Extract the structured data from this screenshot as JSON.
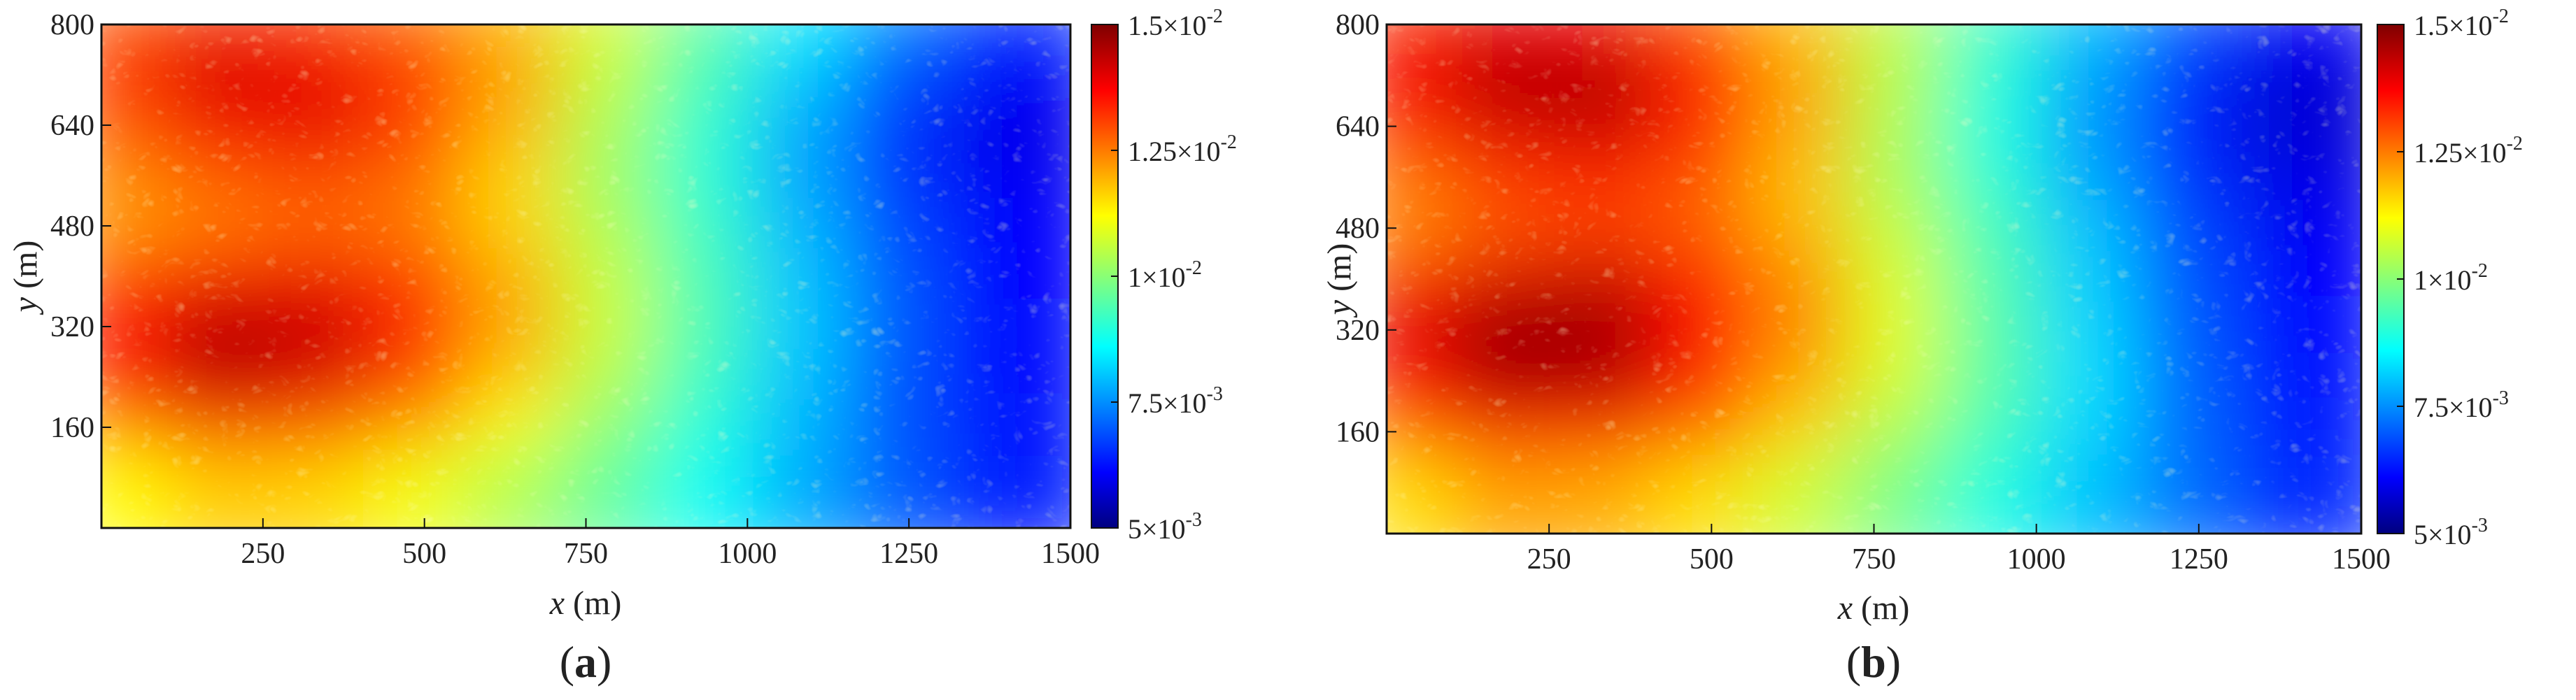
{
  "panels": [
    {
      "label_open": "(",
      "label_letter": "a",
      "label_close": ")",
      "xlabel_var": "x",
      "xlabel_unit": " (m)",
      "ylabel_var": "y",
      "ylabel_unit": " (m)",
      "colorbar_ticks": [
        {
          "mantissa": "1.5",
          "times": "×10",
          "exp": "-2"
        },
        {
          "mantissa": "1.25",
          "times": "×10",
          "exp": "-2"
        },
        {
          "mantissa": "1",
          "times": "×10",
          "exp": "-2"
        },
        {
          "mantissa": "7.5",
          "times": "×10",
          "exp": "-3"
        },
        {
          "mantissa": "5",
          "times": "×10",
          "exp": "-3"
        }
      ]
    },
    {
      "label_open": "(",
      "label_letter": "b",
      "label_close": ")",
      "xlabel_var": "x",
      "xlabel_unit": " (m)",
      "ylabel_var": "y",
      "ylabel_unit": " (m)",
      "colorbar_ticks": [
        {
          "mantissa": "1.5",
          "times": "×10",
          "exp": "-2"
        },
        {
          "mantissa": "1.25",
          "times": "×10",
          "exp": "-2"
        },
        {
          "mantissa": "1",
          "times": "×10",
          "exp": "-2"
        },
        {
          "mantissa": "7.5",
          "times": "×10",
          "exp": "-3"
        },
        {
          "mantissa": "5",
          "times": "×10",
          "exp": "-3"
        }
      ]
    }
  ],
  "chart_data": [
    {
      "type": "heatmap",
      "title": "",
      "xlabel": "x (m)",
      "ylabel": "y (m)",
      "xlim": [
        0,
        1500
      ],
      "ylim": [
        0,
        800
      ],
      "xticks": [
        250,
        500,
        750,
        1000,
        1250,
        1500
      ],
      "yticks": [
        160,
        320,
        480,
        640,
        800
      ],
      "colorbar": {
        "colormap": "jet",
        "range": [
          0.005,
          0.015
        ],
        "ticks": [
          0.005,
          0.0075,
          0.01,
          0.0125,
          0.015
        ]
      },
      "x_centers": [
        75,
        225,
        375,
        525,
        675,
        825,
        975,
        1125,
        1275,
        1425
      ],
      "y_centers": [
        760,
        680,
        600,
        520,
        440,
        360,
        280,
        200,
        120,
        40
      ],
      "z": [
        [
          0.0128,
          0.0133,
          0.0131,
          0.0126,
          0.0119,
          0.0108,
          0.0096,
          0.0085,
          0.0074,
          0.0066
        ],
        [
          0.0133,
          0.0142,
          0.0139,
          0.0132,
          0.0121,
          0.0106,
          0.0093,
          0.0081,
          0.0069,
          0.0061
        ],
        [
          0.0129,
          0.0138,
          0.014,
          0.0131,
          0.012,
          0.0104,
          0.0091,
          0.0078,
          0.0066,
          0.0059
        ],
        [
          0.0124,
          0.0129,
          0.0131,
          0.0127,
          0.0116,
          0.0102,
          0.009,
          0.0077,
          0.0066,
          0.006
        ],
        [
          0.0121,
          0.0124,
          0.0126,
          0.0124,
          0.0116,
          0.0104,
          0.0092,
          0.0079,
          0.0068,
          0.0061
        ],
        [
          0.013,
          0.0136,
          0.0138,
          0.0131,
          0.012,
          0.0106,
          0.0093,
          0.008,
          0.0069,
          0.0061
        ],
        [
          0.0137,
          0.0145,
          0.0143,
          0.0134,
          0.0121,
          0.0107,
          0.0094,
          0.0081,
          0.007,
          0.0062
        ],
        [
          0.0134,
          0.0144,
          0.0141,
          0.0131,
          0.0118,
          0.0105,
          0.0092,
          0.008,
          0.0069,
          0.0062
        ],
        [
          0.0125,
          0.0132,
          0.013,
          0.0122,
          0.0112,
          0.0101,
          0.009,
          0.0079,
          0.0069,
          0.0063
        ],
        [
          0.0112,
          0.0117,
          0.0116,
          0.0111,
          0.0104,
          0.0096,
          0.0087,
          0.0078,
          0.007,
          0.0064
        ]
      ]
    },
    {
      "type": "heatmap",
      "title": "",
      "xlabel": "x (m)",
      "ylabel": "y (m)",
      "xlim": [
        0,
        1500
      ],
      "ylim": [
        0,
        800
      ],
      "xticks": [
        250,
        500,
        750,
        1000,
        1250,
        1500
      ],
      "yticks": [
        160,
        320,
        480,
        640,
        800
      ],
      "colorbar": {
        "colormap": "jet",
        "range": [
          0.005,
          0.015
        ],
        "ticks": [
          0.005,
          0.0075,
          0.01,
          0.0125,
          0.015
        ]
      },
      "x_centers": [
        75,
        225,
        375,
        525,
        675,
        825,
        975,
        1125,
        1275,
        1425
      ],
      "y_centers": [
        760,
        680,
        600,
        520,
        440,
        360,
        280,
        200,
        120,
        40
      ],
      "z": [
        [
          0.0132,
          0.0138,
          0.0136,
          0.0128,
          0.0118,
          0.0105,
          0.0092,
          0.008,
          0.0069,
          0.0061
        ],
        [
          0.0138,
          0.0146,
          0.0145,
          0.0135,
          0.0121,
          0.0105,
          0.009,
          0.0077,
          0.0066,
          0.0058
        ],
        [
          0.0134,
          0.0141,
          0.0143,
          0.0134,
          0.0121,
          0.0104,
          0.0089,
          0.0076,
          0.0064,
          0.0057
        ],
        [
          0.0126,
          0.0132,
          0.0134,
          0.0129,
          0.0118,
          0.0103,
          0.009,
          0.0077,
          0.0066,
          0.0059
        ],
        [
          0.0123,
          0.0128,
          0.013,
          0.0127,
          0.0119,
          0.0106,
          0.0093,
          0.008,
          0.0068,
          0.006
        ],
        [
          0.0133,
          0.014,
          0.0142,
          0.0135,
          0.0123,
          0.0108,
          0.0094,
          0.0081,
          0.0069,
          0.0061
        ],
        [
          0.014,
          0.0148,
          0.0147,
          0.0137,
          0.0124,
          0.0109,
          0.0095,
          0.0082,
          0.007,
          0.0062
        ],
        [
          0.0137,
          0.0146,
          0.0145,
          0.0134,
          0.0121,
          0.0108,
          0.0095,
          0.0083,
          0.0071,
          0.0063
        ],
        [
          0.0128,
          0.0136,
          0.0135,
          0.0127,
          0.0116,
          0.0104,
          0.0093,
          0.0082,
          0.0071,
          0.0064
        ],
        [
          0.0115,
          0.0121,
          0.012,
          0.0115,
          0.0107,
          0.0098,
          0.0089,
          0.008,
          0.0072,
          0.0065
        ]
      ]
    }
  ]
}
